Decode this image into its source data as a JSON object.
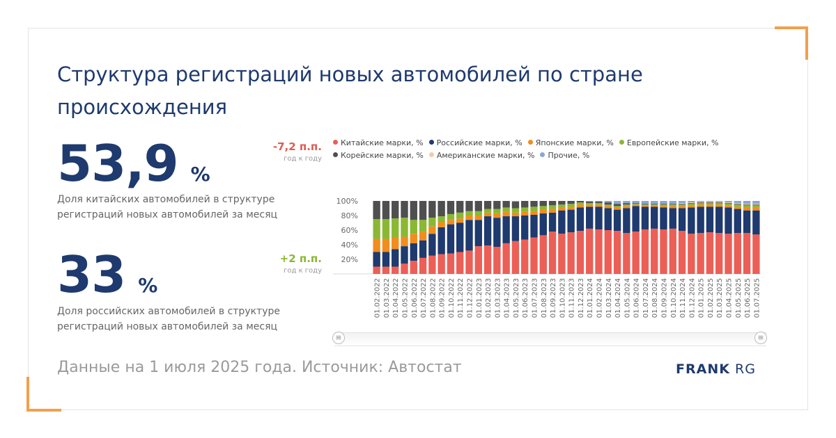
{
  "title": "Структура регистраций новых автомобилей по стране происхождения",
  "kpis": [
    {
      "value": "53,9",
      "unit": "%",
      "delta": "-7,2 п.п.",
      "delta_note": "год к году",
      "description": "Доля китайских автомобилей в структуре регистраций новых автомобилей за месяц",
      "delta_color": "#e05a4e"
    },
    {
      "value": "33",
      "unit": "%",
      "delta": "+2 п.п.",
      "delta_note": "год к году",
      "description": "Доля российских автомобилей в структуре регистраций новых автомобилей за месяц",
      "delta_color": "#8ab833"
    }
  ],
  "footer": "Данные на 1 июля 2025 года. Источник: Автостат",
  "logo": {
    "bold": "FRANK",
    "light": "RG"
  },
  "chart_data": {
    "type": "bar",
    "stacked": true,
    "title": "",
    "xlabel": "",
    "ylabel": "",
    "ylim": [
      0,
      100
    ],
    "y_ticks": [
      "20%",
      "40%",
      "60%",
      "80%",
      "100%"
    ],
    "grid": false,
    "legend_position": "top",
    "categories": [
      "01.02.2022",
      "01.03.2022",
      "01.04.2022",
      "01.05.2022",
      "01.06.2022",
      "01.07.2022",
      "01.08.2022",
      "01.09.2022",
      "01.10.2022",
      "01.11.2022",
      "01.12.2022",
      "01.01.2023",
      "01.02.2023",
      "01.03.2023",
      "01.04.2023",
      "01.05.2023",
      "01.06.2023",
      "01.07.2023",
      "01.08.2023",
      "01.09.2023",
      "01.10.2023",
      "01.11.2023",
      "01.12.2023",
      "01.01.2024",
      "01.02.2024",
      "01.03.2024",
      "01.04.2024",
      "01.05.2024",
      "01.06.2024",
      "01.07.2024",
      "01.08.2024",
      "01.09.2024",
      "01.10.2024",
      "01.11.2024",
      "01.12.2024",
      "01.01.2025",
      "01.02.2025",
      "01.03.2025",
      "01.04.2025",
      "01.05.2025",
      "01.06.2025",
      "01.07.2025"
    ],
    "series": [
      {
        "name": "Китайские марки, %",
        "color": "#eb5f57",
        "values": [
          10,
          10,
          10,
          14,
          18,
          22,
          25,
          27,
          28,
          30,
          32,
          38,
          39,
          37,
          42,
          45,
          47,
          50,
          53,
          58,
          55,
          57,
          59,
          62,
          61,
          60,
          59,
          56,
          58,
          61,
          62,
          61,
          62,
          59,
          55,
          56,
          57,
          56,
          55,
          56,
          56,
          54
        ]
      },
      {
        "name": "Российские марки, %",
        "color": "#1e3a6e",
        "values": [
          20,
          20,
          24,
          24,
          24,
          24,
          30,
          37,
          40,
          40,
          42,
          36,
          40,
          40,
          37,
          34,
          33,
          31,
          30,
          26,
          32,
          31,
          32,
          30,
          31,
          30,
          29,
          34,
          35,
          31,
          30,
          30,
          28,
          31,
          36,
          36,
          35,
          36,
          36,
          33,
          31,
          33
        ]
      },
      {
        "name": "Японские марки, %",
        "color": "#f28c1c",
        "values": [
          18,
          18,
          16,
          13,
          13,
          12,
          10,
          7,
          6,
          6,
          6,
          6,
          5,
          6,
          6,
          5,
          5,
          5,
          5,
          5,
          4,
          4,
          4,
          3,
          3,
          3,
          3,
          3,
          2,
          2,
          2,
          2,
          3,
          3,
          3,
          3,
          3,
          3,
          3,
          3,
          4,
          4
        ]
      },
      {
        "name": "Европейские марки, %",
        "color": "#8ab833",
        "values": [
          27,
          27,
          26,
          26,
          19,
          16,
          12,
          8,
          8,
          8,
          6,
          6,
          5,
          6,
          6,
          6,
          6,
          6,
          5,
          5,
          4,
          4,
          3,
          2,
          2,
          2,
          2,
          2,
          1,
          1,
          1,
          2,
          2,
          2,
          2,
          2,
          2,
          2,
          2,
          3,
          3,
          3
        ]
      },
      {
        "name": "Корейские марки, %",
        "color": "#4f4f4f",
        "values": [
          25,
          25,
          24,
          23,
          26,
          26,
          23,
          21,
          18,
          16,
          14,
          14,
          11,
          11,
          9,
          9,
          9,
          8,
          7,
          6,
          5,
          4,
          2,
          2,
          2,
          3,
          3,
          2,
          1,
          1,
          1,
          1,
          1,
          1,
          1,
          1,
          1,
          1,
          1,
          1,
          1,
          1
        ]
      },
      {
        "name": "Американские марки, %",
        "color": "#f7caa4",
        "values": [
          0,
          0,
          0,
          0,
          0,
          0,
          0,
          0,
          0,
          0,
          0,
          0,
          0,
          0,
          0,
          0,
          0,
          0,
          0,
          0,
          0,
          0,
          0,
          0,
          0,
          0,
          0,
          0,
          0,
          0,
          0,
          0,
          0,
          1,
          1,
          1,
          1,
          1,
          1,
          1,
          1,
          1
        ]
      },
      {
        "name": "Прочие, %",
        "color": "#8aa6d6",
        "values": [
          0,
          0,
          0,
          0,
          0,
          0,
          0,
          0,
          0,
          0,
          0,
          0,
          0,
          0,
          0,
          1,
          0,
          0,
          0,
          0,
          0,
          0,
          0,
          1,
          1,
          2,
          4,
          3,
          3,
          4,
          4,
          4,
          4,
          3,
          2,
          1,
          1,
          1,
          2,
          3,
          4,
          4
        ]
      }
    ]
  }
}
